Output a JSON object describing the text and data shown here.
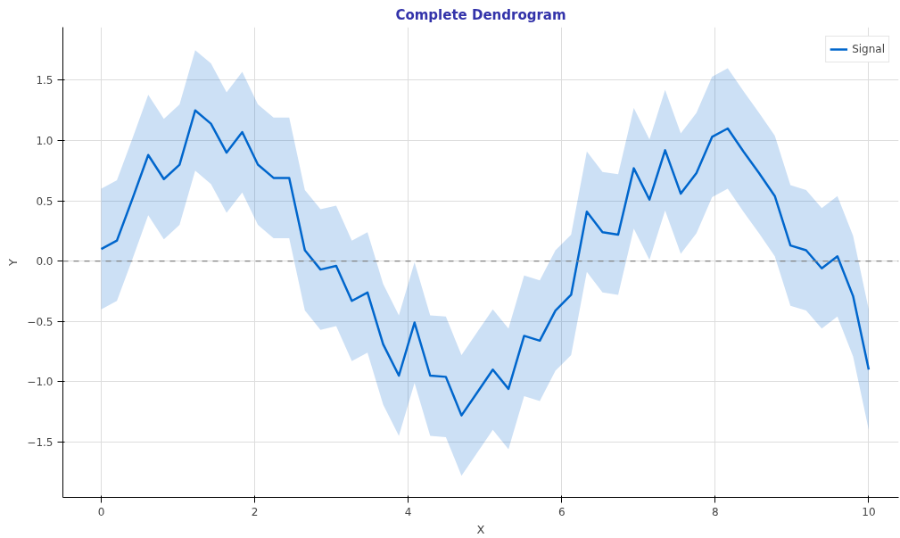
{
  "chart_data": {
    "type": "line",
    "title": "Complete Dendrogram",
    "xlabel": "X",
    "ylabel": "Y",
    "x": [
      0,
      0.204,
      0.408,
      0.612,
      0.816,
      1.02,
      1.224,
      1.429,
      1.633,
      1.837,
      2.041,
      2.245,
      2.449,
      2.653,
      2.857,
      3.061,
      3.265,
      3.469,
      3.673,
      3.878,
      4.082,
      4.286,
      4.49,
      4.694,
      4.898,
      5.102,
      5.306,
      5.51,
      5.714,
      5.918,
      6.122,
      6.327,
      6.531,
      6.735,
      6.939,
      7.143,
      7.347,
      7.551,
      7.755,
      7.959,
      8.163,
      8.367,
      8.571,
      8.776,
      8.98,
      9.184,
      9.388,
      9.592,
      9.796,
      10
    ],
    "series": [
      {
        "name": "Signal",
        "color": "#0066cc",
        "values": [
          0.1,
          0.17,
          0.52,
          0.88,
          0.68,
          0.8,
          1.25,
          1.14,
          0.9,
          1.07,
          0.8,
          0.69,
          0.69,
          0.09,
          -0.07,
          -0.04,
          -0.33,
          -0.26,
          -0.69,
          -0.95,
          -0.51,
          -0.95,
          -0.96,
          -1.28,
          -1.09,
          -0.9,
          -1.06,
          -0.62,
          -0.66,
          -0.41,
          -0.28,
          0.41,
          0.24,
          0.22,
          0.77,
          0.51,
          0.92,
          0.56,
          0.73,
          1.03,
          1.1,
          0.91,
          0.73,
          0.54,
          0.13,
          0.09,
          -0.06,
          0.04,
          -0.29,
          -0.9
        ],
        "lower": [
          -0.4,
          -0.33,
          0.02,
          0.38,
          0.18,
          0.3,
          0.75,
          0.64,
          0.4,
          0.57,
          0.3,
          0.19,
          0.19,
          -0.41,
          -0.57,
          -0.54,
          -0.83,
          -0.76,
          -1.19,
          -1.45,
          -1.01,
          -1.45,
          -1.46,
          -1.78,
          -1.59,
          -1.4,
          -1.56,
          -1.12,
          -1.16,
          -0.91,
          -0.78,
          -0.09,
          -0.26,
          -0.28,
          0.27,
          0.01,
          0.42,
          0.06,
          0.23,
          0.53,
          0.6,
          0.41,
          0.23,
          0.04,
          -0.37,
          -0.41,
          -0.56,
          -0.46,
          -0.79,
          -1.4
        ],
        "upper": [
          0.6,
          0.67,
          1.02,
          1.38,
          1.18,
          1.3,
          1.75,
          1.64,
          1.4,
          1.57,
          1.3,
          1.19,
          1.19,
          0.59,
          0.43,
          0.46,
          0.17,
          0.24,
          -0.19,
          -0.45,
          -0.01,
          -0.45,
          -0.46,
          -0.78,
          -0.59,
          -0.4,
          -0.56,
          -0.12,
          -0.16,
          0.09,
          0.22,
          0.91,
          0.74,
          0.72,
          1.27,
          1.01,
          1.42,
          1.06,
          1.23,
          1.53,
          1.6,
          1.41,
          1.23,
          1.04,
          0.63,
          0.59,
          0.44,
          0.54,
          0.21,
          -0.4
        ]
      }
    ],
    "xlim": [
      -0.5,
      10.39
    ],
    "ylim": [
      -1.96,
      1.94
    ],
    "xticks": [
      0,
      2,
      4,
      6,
      8,
      10
    ],
    "yticks": [
      {
        "value": -1.5,
        "label": "−1.5"
      },
      {
        "value": -1,
        "label": "−1.0"
      },
      {
        "value": -0.5,
        "label": "−0.5"
      },
      {
        "value": 0,
        "label": "0.0"
      },
      {
        "value": 0.5,
        "label": "0.5"
      },
      {
        "value": 1,
        "label": "1.0"
      },
      {
        "value": 1.5,
        "label": "1.5"
      }
    ],
    "ref_lines": [
      {
        "axis": "y",
        "value": 0,
        "color": "#808080",
        "line_style": "dashed"
      }
    ],
    "grid": true,
    "legend": "top right",
    "line_style": "solid",
    "marker": "none"
  }
}
